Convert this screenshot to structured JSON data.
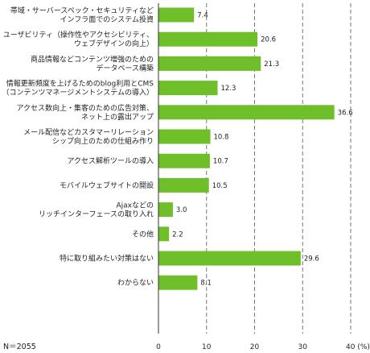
{
  "chart_data": {
    "type": "bar",
    "orientation": "horizontal",
    "categories": [
      [
        "帯域・サーバースペック・セキュリティなど",
        "インフラ面でのシステム投資"
      ],
      [
        "ユーザビリティ（操作性やアクセシビリティ、",
        "ウェブデザインの向上）"
      ],
      [
        "商品情報などコンテンツ増強のための",
        "データベース構築"
      ],
      [
        "情報更新頻度を上げるためのblog利用とCMS",
        "（コンテンツマネージメントシステムの導入）"
      ],
      [
        "アクセス数向上・集客のための広告対策、",
        "ネット上の露出アップ"
      ],
      [
        "メール配信などカスタマーリレーション",
        "シップ向上のための仕組み作り"
      ],
      [
        "アクセス解析ツールの導入"
      ],
      [
        "モバイルウェブサイトの開設"
      ],
      [
        "Ajaxなどの",
        "リッチインターフェースの取り入れ"
      ],
      [
        "その他"
      ],
      [
        "特に取り組みたい対策はない"
      ],
      [
        "わからない"
      ]
    ],
    "values": [
      7.4,
      20.6,
      21.3,
      12.3,
      36.6,
      10.8,
      10.7,
      10.5,
      3.0,
      2.2,
      29.6,
      8.1
    ],
    "value_labels": [
      "7.4",
      "20.6",
      "21.3",
      "12.3",
      "36.6",
      "10.8",
      "10.7",
      "10.5",
      "3.0",
      "2.2",
      "29.6",
      "8.1"
    ],
    "xlim": [
      0,
      40
    ],
    "xticks": [
      "0",
      "10",
      "20",
      "30",
      "40 (%)"
    ],
    "grid": "vertical dashed",
    "bar_color": "#6fbf2a"
  },
  "note": "N＝2055"
}
